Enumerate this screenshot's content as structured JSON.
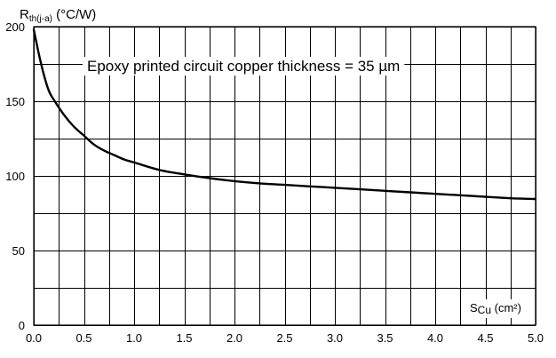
{
  "chart_data": {
    "type": "line",
    "title": "",
    "annotation": "Epoxy printed circuit copper thickness = 35 µm",
    "ylabel": {
      "main": "R",
      "sub": "th(j-a)",
      "unit": " (°C/W)"
    },
    "xlabel": {
      "main": "S",
      "sub": "Cu",
      "unit": " (cm²)"
    },
    "xlim": [
      0,
      5
    ],
    "ylim": [
      0,
      200
    ],
    "x_ticks": [
      "0.0",
      "0.5",
      "1.0",
      "1.5",
      "2.0",
      "2.5",
      "3.0",
      "3.5",
      "4.0",
      "4.5",
      "5.0"
    ],
    "y_ticks": [
      "0",
      "50",
      "100",
      "150",
      "200"
    ],
    "x_grid_step": 0.25,
    "y_grid_step": 25,
    "grid": true,
    "series": [
      {
        "x": [
          0.0,
          0.05,
          0.1,
          0.15,
          0.2,
          0.3,
          0.4,
          0.5,
          0.6,
          0.7,
          0.8,
          0.9,
          1.0,
          1.25,
          1.5,
          1.75,
          2.0,
          2.25,
          2.5,
          2.75,
          3.0,
          3.25,
          3.5,
          3.75,
          4.0,
          4.25,
          4.5,
          4.75,
          5.0
        ],
        "y": [
          198,
          182,
          168,
          157,
          151,
          141,
          133,
          127,
          121,
          117,
          114,
          111,
          109,
          104,
          101,
          98.5,
          96.5,
          95,
          94,
          93,
          92,
          91,
          90,
          89,
          88,
          87,
          86,
          85,
          84.5
        ]
      }
    ]
  }
}
